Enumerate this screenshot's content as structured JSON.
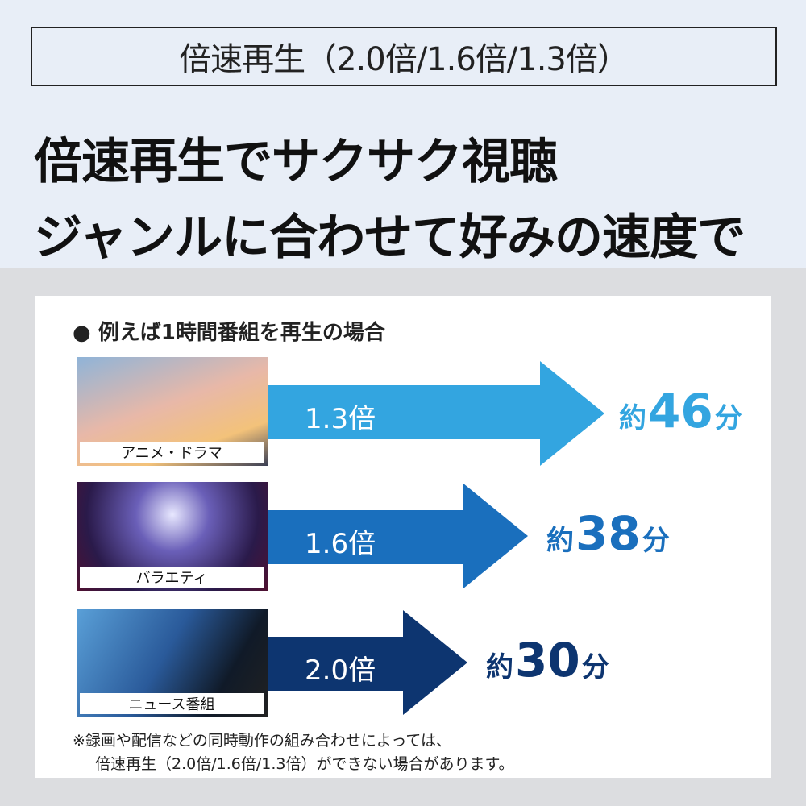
{
  "header": {
    "title": "倍速再生（2.0倍/1.6倍/1.3倍）",
    "headline_1": "倍速再生でサクサク視聴",
    "headline_2": "ジャンルに合わせて好みの速度で"
  },
  "section": {
    "title": "● 例えば1時間番組を再生の場合"
  },
  "rows": [
    {
      "genre": "アニメ・ドラマ",
      "speed": "1.3倍",
      "prefix": "約",
      "minutes": "46",
      "unit": "分",
      "color": "#33a5e0"
    },
    {
      "genre": "バラエティ",
      "speed": "1.6倍",
      "prefix": "約",
      "minutes": "38",
      "unit": "分",
      "color": "#1a6fbd"
    },
    {
      "genre": "ニュース番組",
      "speed": "2.0倍",
      "prefix": "約",
      "minutes": "30",
      "unit": "分",
      "color": "#0d3570"
    }
  ],
  "note": {
    "line1": "※録画や配信などの同時動作の組み合わせによっては、",
    "line2": "倍速再生（2.0倍/1.6倍/1.3倍）ができない場合があります。"
  }
}
